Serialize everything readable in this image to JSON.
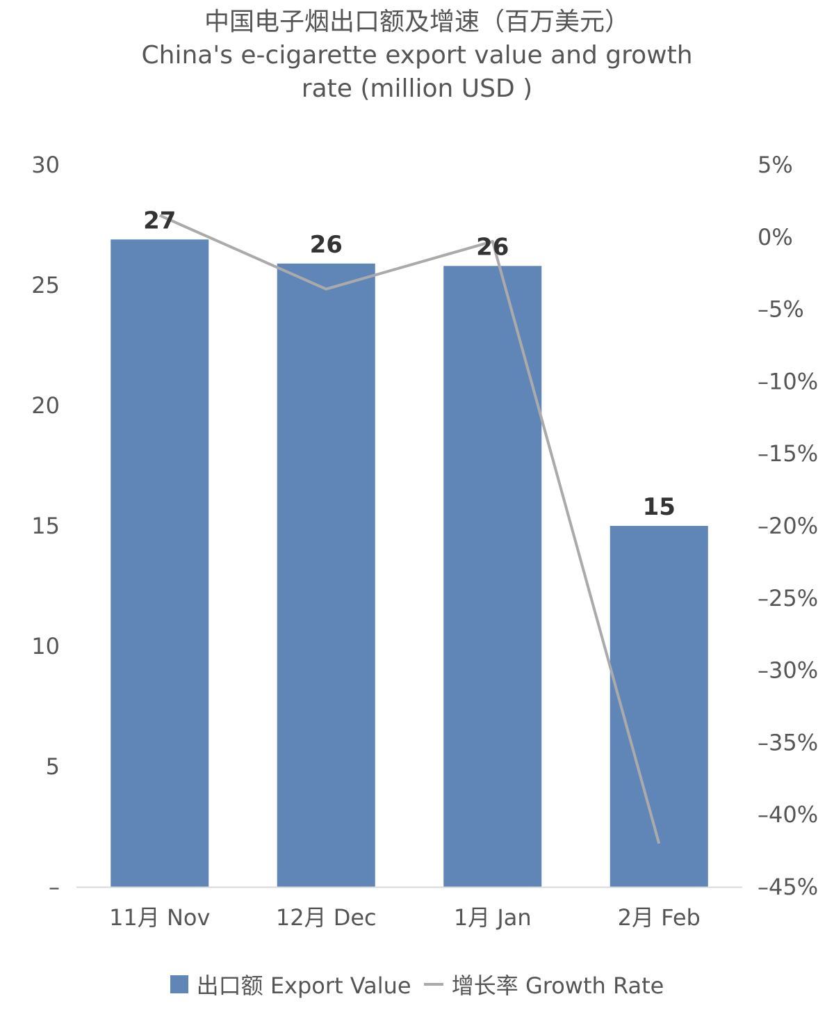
{
  "chart_data": {
    "type": "bar",
    "title_zh": "中国电子烟出口额及增速（百万美元）",
    "title_en_line1": "China's e-cigarette export value and growth",
    "title_en_line2": "rate (million USD )",
    "categories": [
      "11月 Nov",
      "12月 Dec",
      "1月 Jan",
      "2月 Feb"
    ],
    "series": [
      {
        "name": "出口额 Export Value",
        "type": "bar",
        "axis": "left",
        "color": "#6085b7",
        "values": [
          26.9,
          25.9,
          25.8,
          15.0
        ],
        "data_labels": [
          "27",
          "26",
          "26",
          "15"
        ]
      },
      {
        "name": "增长率 Growth Rate",
        "type": "line",
        "axis": "right",
        "color": "#aaaaaa",
        "values": [
          1.5,
          -3.6,
          -0.3,
          -42.0
        ]
      }
    ],
    "y_left": {
      "min": 0,
      "max": 30,
      "ticks": [
        30,
        25,
        20,
        15,
        10,
        5,
        0
      ],
      "tick_labels": [
        "30",
        "25",
        "20",
        "15",
        "10",
        "5",
        "–"
      ]
    },
    "y_right": {
      "min": -45,
      "max": 5,
      "ticks": [
        5,
        0,
        -5,
        -10,
        -15,
        -20,
        -25,
        -30,
        -35,
        -40,
        -45
      ],
      "tick_labels": [
        "5%",
        "0%",
        "–5%",
        "–10%",
        "–15%",
        "–20%",
        "–25%",
        "–30%",
        "–35%",
        "–40%",
        "–45%"
      ]
    },
    "grid": false,
    "legend_position": "bottom"
  }
}
